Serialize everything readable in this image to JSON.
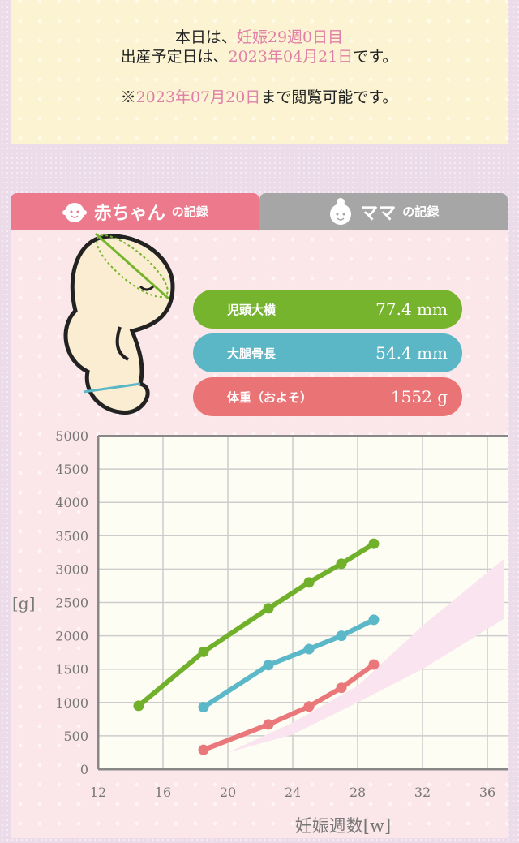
{
  "info": {
    "line1_prefix": "本日は、",
    "line1_value": "妊娠29週0日目",
    "line2_prefix": "出産予定日は、",
    "line2_value": "2023年04月21日",
    "line2_suffix": "です。",
    "line3_prefix": "※",
    "line3_value": "2023年07月20日",
    "line3_suffix": "まで閲覧可能です。"
  },
  "tabs": [
    {
      "label": "赤ちゃん",
      "sub": "の記録",
      "icon": "baby-face-icon",
      "active": true
    },
    {
      "label": "ママ",
      "sub": "の記録",
      "icon": "mother-face-icon",
      "active": false
    }
  ],
  "measurements": [
    {
      "label": "児頭大横",
      "value": "77.4 mm",
      "color": "#77b42e"
    },
    {
      "label": "大腿骨長",
      "value": "54.4 mm",
      "color": "#5bb6c5"
    },
    {
      "label": "体重（およそ）",
      "value": "1552 g",
      "color": "#ea7375"
    }
  ],
  "chart_data": {
    "type": "line",
    "xlabel": "妊娠週数[w]",
    "ylabel": "[g]",
    "xlim": [
      12,
      37
    ],
    "ylim": [
      0,
      5000
    ],
    "xticks": [
      "12",
      "16",
      "20",
      "24",
      "28",
      "32",
      "36"
    ],
    "yticks": [
      "0",
      "500",
      "1000",
      "1500",
      "2000",
      "2500",
      "3000",
      "3500",
      "4000",
      "4500",
      "5000"
    ],
    "grid": true,
    "series": [
      {
        "color": "#70b02b",
        "x": [
          14.5,
          18.5,
          22.5,
          25,
          27,
          29
        ],
        "y": [
          950,
          1760,
          2410,
          2800,
          3080,
          3380
        ]
      },
      {
        "color": "#5bb8c8",
        "x": [
          18.5,
          22.5,
          25,
          27,
          29
        ],
        "y": [
          930,
          1560,
          1800,
          2000,
          2240
        ]
      },
      {
        "color": "#ea7779",
        "x": [
          18.5,
          22.5,
          25,
          27,
          29
        ],
        "y": [
          290,
          670,
          940,
          1220,
          1570
        ]
      }
    ],
    "band": {
      "color": "#f9e4f0",
      "x": [
        20,
        24,
        28,
        32,
        37
      ],
      "lower": [
        250,
        520,
        1000,
        1500,
        2250
      ],
      "upper": [
        250,
        700,
        1250,
        2150,
        3150
      ]
    }
  }
}
